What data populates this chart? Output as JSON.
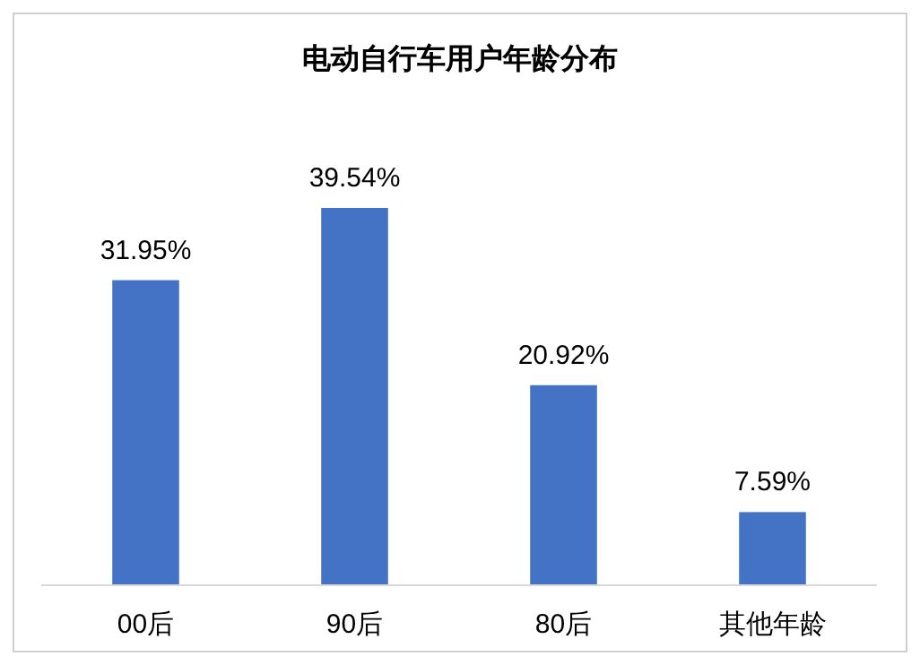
{
  "chart_data": {
    "type": "bar",
    "title": "电动自行车用户年龄分布",
    "categories": [
      "00后",
      "90后",
      "80后",
      "其他年龄"
    ],
    "values": [
      31.95,
      39.54,
      20.92,
      7.59
    ],
    "value_labels": [
      "31.95%",
      "39.54%",
      "20.92%",
      "7.59%"
    ],
    "color": "#4472c4"
  }
}
